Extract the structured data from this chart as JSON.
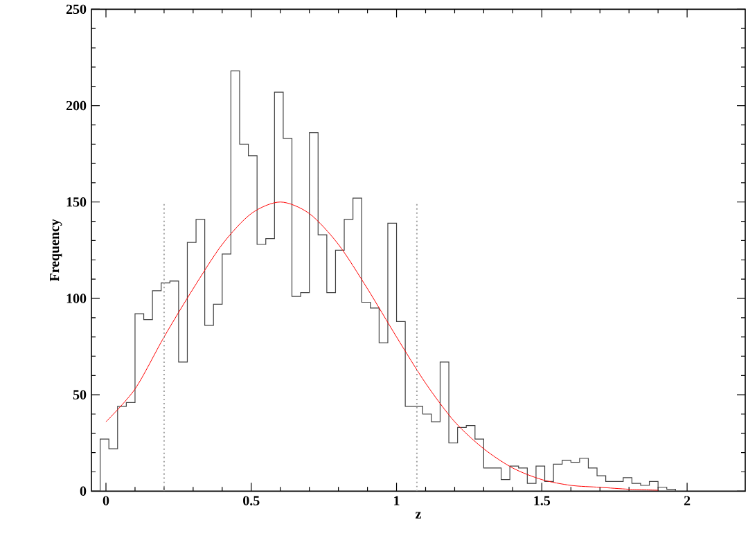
{
  "chart_data": {
    "type": "histogram",
    "xlabel": "z",
    "ylabel": "Frequency",
    "xlim": [
      -0.05,
      2.2
    ],
    "ylim": [
      0,
      250
    ],
    "xticks": [
      0,
      0.5,
      1,
      1.5,
      2
    ],
    "yticks": [
      0,
      50,
      100,
      150,
      200,
      250
    ],
    "grid": false,
    "series": [
      {
        "color": "#404040",
        "bins": [
          -0.02,
          0.01,
          0.04,
          0.07,
          0.1,
          0.13,
          0.16,
          0.19,
          0.22,
          0.25,
          0.28,
          0.31,
          0.34,
          0.37,
          0.4,
          0.43,
          0.46,
          0.49,
          0.52,
          0.55,
          0.58,
          0.61,
          0.64,
          0.67,
          0.7,
          0.73,
          0.76,
          0.79,
          0.82,
          0.85,
          0.88,
          0.91,
          0.94,
          0.97,
          1.0,
          1.03,
          1.06,
          1.09,
          1.12,
          1.15,
          1.18,
          1.21,
          1.24,
          1.27,
          1.3,
          1.33,
          1.36,
          1.39,
          1.42,
          1.45,
          1.48,
          1.51,
          1.54,
          1.57,
          1.6,
          1.63,
          1.66,
          1.69,
          1.72,
          1.75,
          1.78,
          1.81,
          1.84,
          1.87,
          1.9,
          1.93,
          1.96
        ],
        "values": [
          27,
          22,
          44,
          46,
          92,
          89,
          104,
          108,
          109,
          67,
          129,
          141,
          86,
          97,
          123,
          218,
          180,
          174,
          128,
          131,
          207,
          183,
          101,
          103,
          186,
          133,
          103,
          125,
          141,
          152,
          98,
          95,
          77,
          139,
          88,
          44,
          44,
          40,
          36,
          67,
          25,
          33,
          34,
          27,
          12,
          12,
          6,
          13,
          12,
          4,
          13,
          5,
          14,
          16,
          15,
          17,
          12,
          8,
          5,
          5,
          7,
          4,
          3,
          5,
          2,
          1
        ]
      },
      {
        "type": "line",
        "color": "#ff0000",
        "line_style": "solid",
        "x": [
          0,
          0.1,
          0.2,
          0.3,
          0.4,
          0.5,
          0.6,
          0.7,
          0.8,
          0.9,
          1.0,
          1.1,
          1.2,
          1.3,
          1.4,
          1.5,
          1.6,
          1.7,
          1.8,
          1.9
        ],
        "values": [
          36,
          53,
          80,
          105,
          128,
          144,
          150,
          144,
          128,
          105,
          80,
          56,
          36,
          22,
          12,
          6,
          3,
          2,
          1,
          0.5
        ]
      },
      {
        "type": "line",
        "color": "#a0a0a0",
        "line_style": "dotted",
        "x": [
          0.2,
          0.2
        ],
        "values": [
          0,
          150
        ]
      },
      {
        "type": "line",
        "color": "#a0a0a0",
        "line_style": "dotted",
        "x": [
          1.07,
          1.07
        ],
        "values": [
          0,
          150
        ]
      }
    ]
  }
}
